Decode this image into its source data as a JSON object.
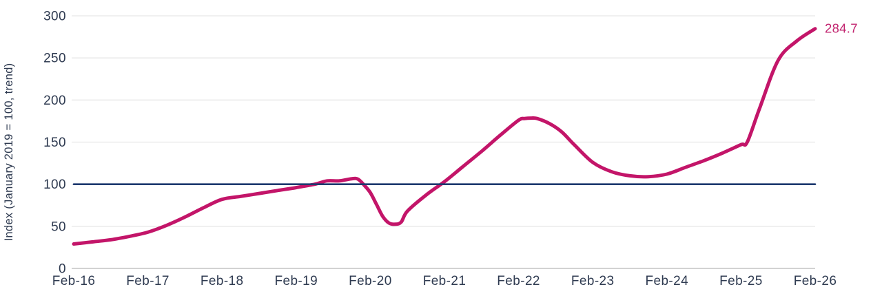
{
  "labels": {
    "y_axis_title": "Index (January 2019 = 100, trend)",
    "end_value_label": "284.7"
  },
  "colors": {
    "trend_line": "#C31569",
    "reference_line": "#1E3A6F",
    "end_label": "#C2246F",
    "tick_text": "#2F3B51",
    "gridline": "#E7E7E7",
    "baseline_axis": "#D2D2D2",
    "background": "#FFFFFF"
  },
  "chart_data": {
    "type": "line",
    "title": "",
    "xlabel": "",
    "ylabel": "Index (January 2019 = 100, trend)",
    "ylim": [
      0,
      300
    ],
    "y_ticks": [
      0,
      50,
      100,
      150,
      200,
      250,
      300
    ],
    "x_tick_labels": [
      "Feb-16",
      "Feb-17",
      "Feb-18",
      "Feb-19",
      "Feb-20",
      "Feb-21",
      "Feb-22",
      "Feb-23",
      "Feb-24",
      "Feb-25",
      "Feb-26"
    ],
    "x_unit": "months since Feb-2016; x tick labels mark February of each year",
    "grid": "horizontal gridlines on, light gray",
    "legend": "none",
    "annotations": [
      {
        "text": "284.7",
        "attached_to": "last point of index-trend series"
      }
    ],
    "series": [
      {
        "name": "index-trend",
        "color": "#C31569",
        "stroke_width": 5,
        "points": [
          [
            0,
            29
          ],
          [
            3,
            31.5
          ],
          [
            6,
            34
          ],
          [
            9,
            38
          ],
          [
            12,
            43
          ],
          [
            15,
            51
          ],
          [
            18,
            61
          ],
          [
            21,
            72
          ],
          [
            24,
            82
          ],
          [
            27,
            85.5
          ],
          [
            30,
            89
          ],
          [
            33,
            92.5
          ],
          [
            36,
            96
          ],
          [
            39,
            100
          ],
          [
            41,
            104
          ],
          [
            43,
            104
          ],
          [
            45,
            106.5
          ],
          [
            46,
            106
          ],
          [
            47,
            99
          ],
          [
            48,
            90
          ],
          [
            49,
            76
          ],
          [
            50,
            62
          ],
          [
            51,
            54
          ],
          [
            52,
            52.5
          ],
          [
            53,
            55
          ],
          [
            54,
            68
          ],
          [
            57,
            87
          ],
          [
            60,
            103
          ],
          [
            63,
            121
          ],
          [
            66,
            139
          ],
          [
            69,
            158
          ],
          [
            72,
            176
          ],
          [
            73,
            178
          ],
          [
            74,
            178.5
          ],
          [
            75,
            178
          ],
          [
            77,
            172
          ],
          [
            79,
            162
          ],
          [
            81,
            147
          ],
          [
            84,
            126
          ],
          [
            87,
            115
          ],
          [
            90,
            110
          ],
          [
            93,
            109
          ],
          [
            96,
            112
          ],
          [
            99,
            120
          ],
          [
            102,
            128
          ],
          [
            105,
            137
          ],
          [
            108,
            147
          ],
          [
            109,
            150
          ],
          [
            111,
            190
          ],
          [
            114,
            247
          ],
          [
            117,
            270
          ],
          [
            120,
            284.7
          ]
        ]
      },
      {
        "name": "baseline-100",
        "color": "#1E3A6F",
        "stroke_width": 2.6,
        "points": [
          [
            0,
            100
          ],
          [
            120,
            100
          ]
        ]
      }
    ]
  }
}
